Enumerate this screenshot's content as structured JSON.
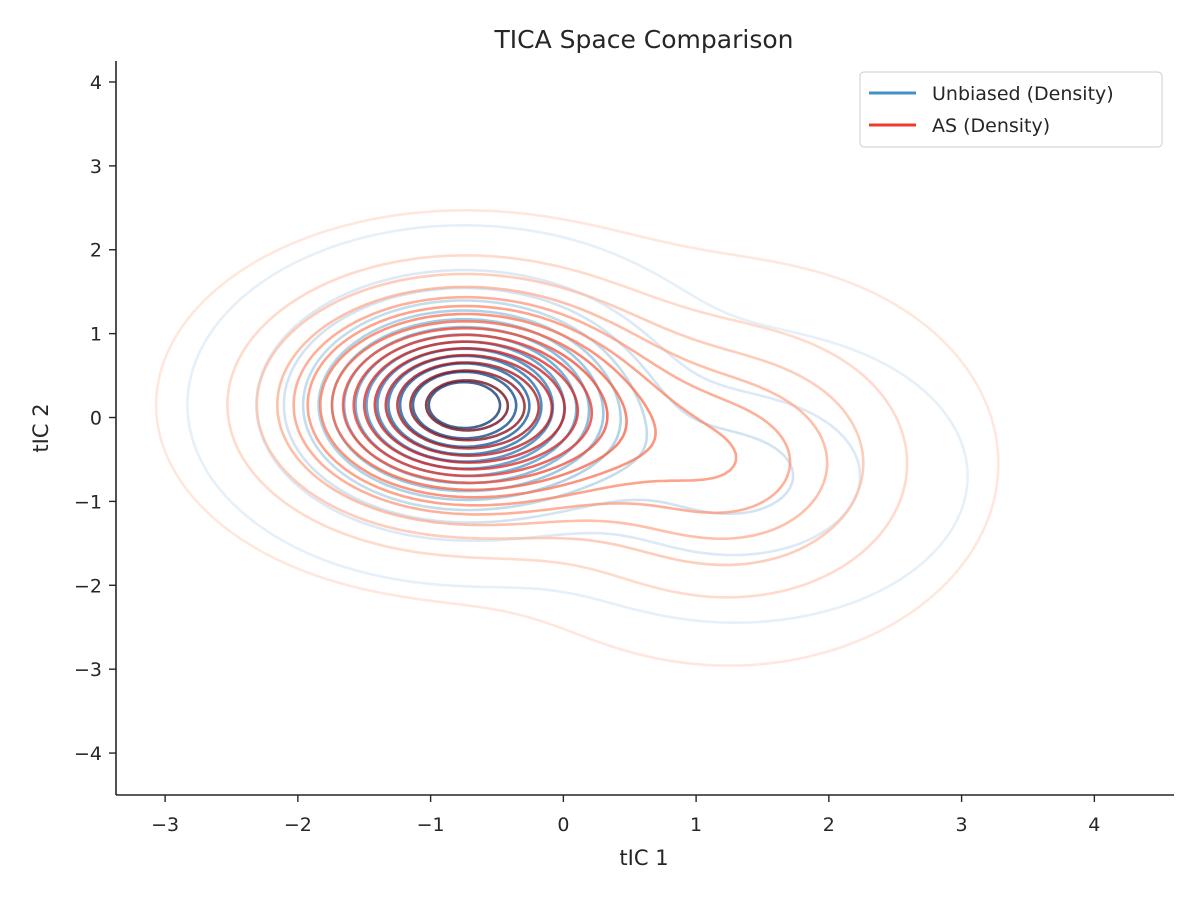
{
  "chart_data": {
    "type": "contour",
    "title": "TICA Space Comparison",
    "xlabel": "tIC 1",
    "ylabel": "tIC 2",
    "xlim": [
      -3.37,
      4.6
    ],
    "ylim": [
      -4.5,
      4.25
    ],
    "xticks": [
      -3,
      -2,
      -1,
      0,
      1,
      2,
      3,
      4
    ],
    "yticks": [
      -4,
      -3,
      -2,
      -1,
      0,
      1,
      2,
      3,
      4
    ],
    "xtick_labels": [
      "−3",
      "−2",
      "−1",
      "0",
      "1",
      "2",
      "3",
      "4"
    ],
    "ytick_labels": [
      "−4",
      "−3",
      "−2",
      "−1",
      "0",
      "1",
      "2",
      "3",
      "4"
    ],
    "grid": false,
    "legend": {
      "placement": "top-right",
      "entries": [
        {
          "label": "Unbiased (Density)",
          "color": "#4292c6"
        },
        {
          "label": "AS (Density)",
          "color": "#ef3b2c"
        }
      ]
    },
    "series": [
      {
        "name": "Unbiased (Density)",
        "colormap": "Blues",
        "levels": 14,
        "density_peak": [
          -0.75,
          0.15
        ],
        "main_lobe": {
          "center": [
            -0.75,
            0.15
          ],
          "sigma": [
            0.7,
            0.72
          ],
          "weight": 1.0
        },
        "secondary_lobe": {
          "center": [
            1.3,
            -0.7
          ],
          "sigma": [
            0.75,
            0.75
          ],
          "weight": 0.18
        },
        "x_extent": [
          -2.55,
          3.05
        ],
        "y_extent": [
          -2.75,
          2.2
        ]
      },
      {
        "name": "AS (Density)",
        "colormap": "Reds",
        "levels": 16,
        "density_peak": [
          -0.75,
          0.15
        ],
        "main_lobe": {
          "center": [
            -0.75,
            0.15
          ],
          "sigma": [
            0.78,
            0.78
          ],
          "weight": 1.0
        },
        "secondary_lobe": {
          "center": [
            1.25,
            -0.55
          ],
          "sigma": [
            0.8,
            0.95
          ],
          "weight": 0.3
        },
        "x_extent": [
          -2.6,
          3.05
        ],
        "y_extent": [
          -3.0,
          2.45
        ]
      }
    ]
  }
}
